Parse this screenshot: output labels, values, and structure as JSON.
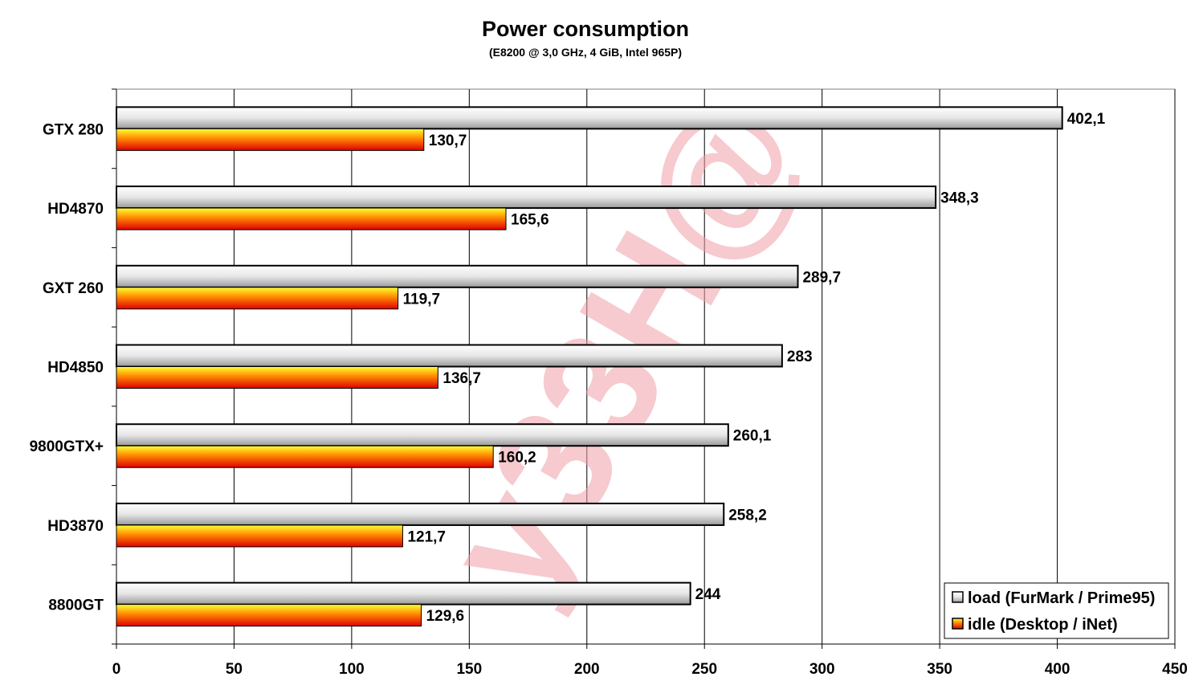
{
  "chart_data": {
    "type": "bar",
    "orientation": "horizontal",
    "title": "Power consumption",
    "subtitle": "(E8200 @ 3,0 GHz, 4 GiB, Intel 965P)",
    "categories": [
      "GTX 280",
      "HD4870",
      "GXT 260",
      "HD4850",
      "9800GTX+",
      "HD3870",
      "8800GT"
    ],
    "series": [
      {
        "name": "load (FurMark / Prime95)",
        "values": [
          402.1,
          348.3,
          289.7,
          283,
          260.1,
          258.2,
          244
        ],
        "labels": [
          "402,1",
          "348,3",
          "289,7",
          "283",
          "260,1",
          "258,2",
          "244"
        ],
        "color": "#d8d8d8"
      },
      {
        "name": "idle (Desktop / iNet)",
        "values": [
          130.7,
          165.6,
          119.7,
          136.7,
          160.2,
          121.7,
          129.6
        ],
        "labels": [
          "130,7",
          "165,6",
          "119,7",
          "136,7",
          "160,2",
          "121,7",
          "129,6"
        ],
        "color": "#ff3300"
      }
    ],
    "xlim": [
      0,
      450
    ],
    "xticks": [
      0,
      50,
      100,
      150,
      200,
      250,
      300,
      350,
      400,
      450
    ],
    "grid": "vertical",
    "legend_position": "bottom-right",
    "watermark": "y33H@"
  }
}
